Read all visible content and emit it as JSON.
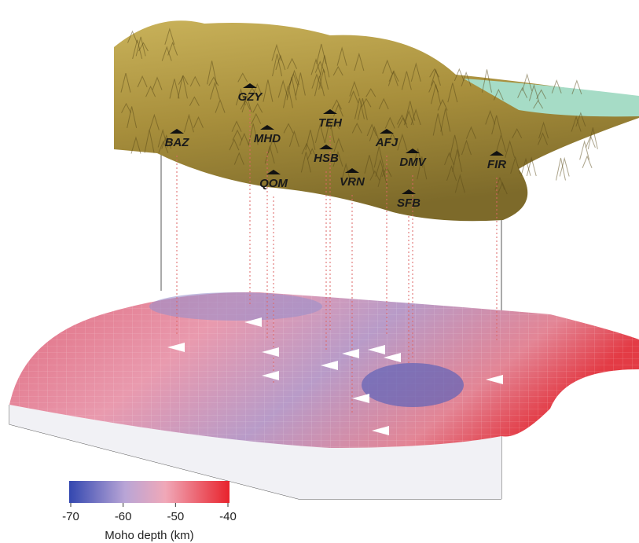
{
  "stations": [
    "GZY",
    "TEH",
    "BAZ",
    "MHD",
    "AFJ",
    "HSB",
    "DMV",
    "FIR",
    "QOM",
    "VRN",
    "SFB"
  ],
  "colorbar": {
    "label": "Moho depth (km)",
    "ticks": [
      -70,
      -60,
      -50,
      -40
    ]
  }
}
